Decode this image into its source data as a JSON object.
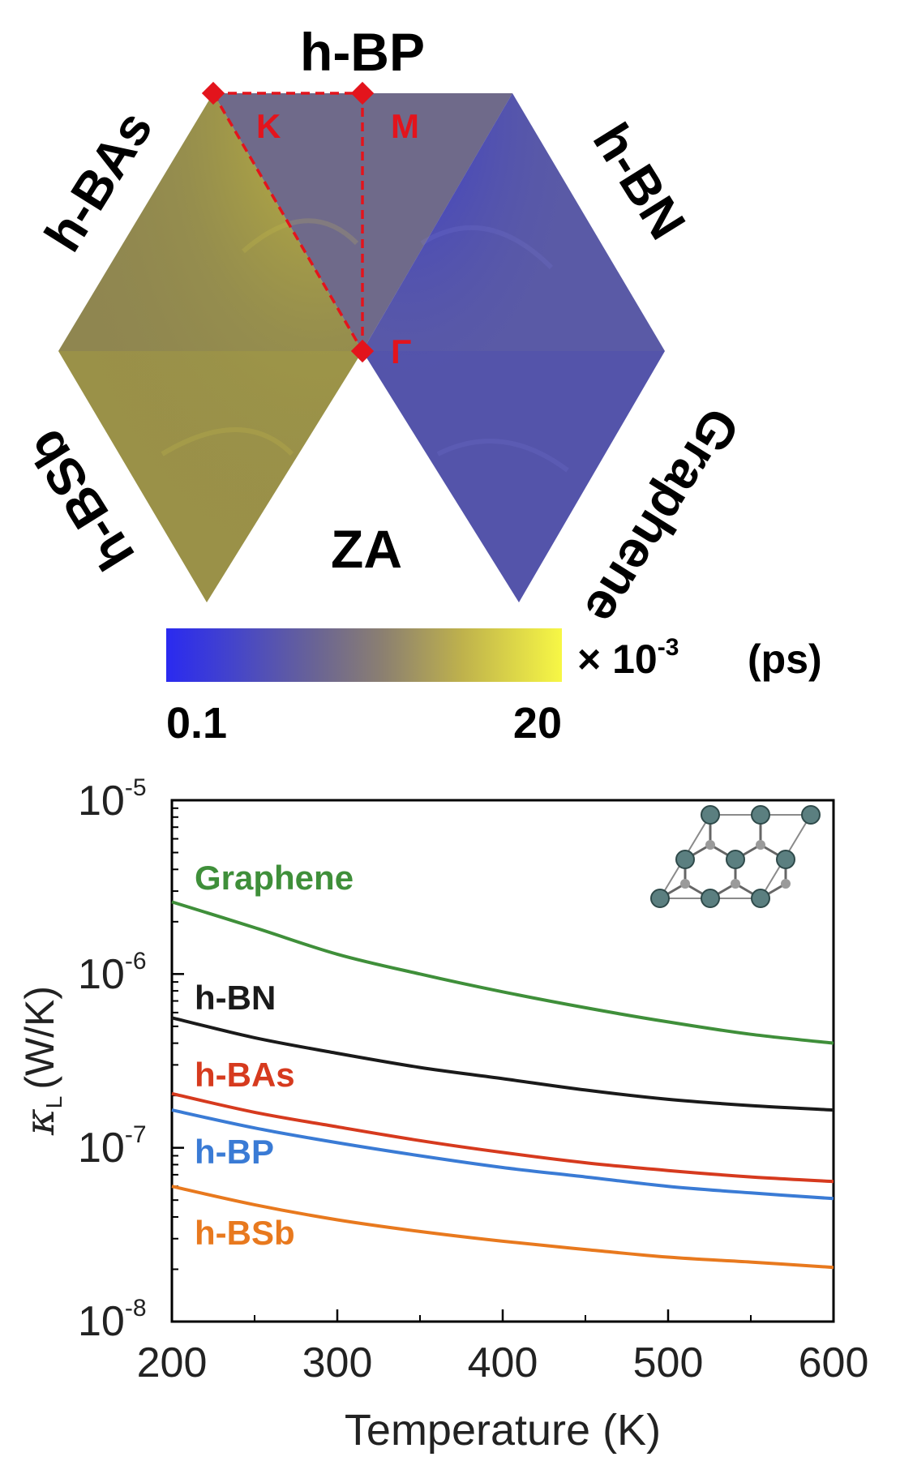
{
  "top_panel": {
    "materials": {
      "top": "h-BP",
      "upper_left": "h-BAs",
      "upper_right": "h-BN",
      "lower_left": "h-BSb",
      "lower_right": "Graphene"
    },
    "mode_label": "ZA",
    "points": {
      "K": "K",
      "M": "M",
      "Gamma": "Γ"
    },
    "colorbar": {
      "min_label": "0.1",
      "max_label": "20",
      "multiplier": "× 10",
      "exponent": "-3",
      "unit": "(ps)",
      "low_color": "#2a2af0",
      "high_color": "#f5f548"
    },
    "colors": {
      "yellowish_region": "#8f8650",
      "bluish_region": "#5a5aa6",
      "path_marker": "#e3141c"
    }
  },
  "chart_data": {
    "type": "line",
    "xlabel": "Temperature (K)",
    "ylabel": "κL (W/K)",
    "ylabel_symbol": "κ",
    "ylabel_subscript": "L",
    "ylabel_unit": "(W/K)",
    "xlim": [
      200,
      600
    ],
    "ylim": [
      1e-08,
      1e-05
    ],
    "yscale": "log",
    "x_ticks": [
      "200",
      "300",
      "400",
      "500",
      "600"
    ],
    "y_ticks": [
      {
        "base": "10",
        "exp": "-5"
      },
      {
        "base": "10",
        "exp": "-6"
      },
      {
        "base": "10",
        "exp": "-7"
      },
      {
        "base": "10",
        "exp": "-8"
      }
    ],
    "x": [
      200,
      250,
      300,
      350,
      400,
      450,
      500,
      550,
      600
    ],
    "series": [
      {
        "name": "Graphene",
        "color": "#3f8f3a",
        "values": [
          2.6e-06,
          1.85e-06,
          1.3e-06,
          1e-06,
          7.9e-07,
          6.4e-07,
          5.3e-07,
          4.5e-07,
          4e-07
        ]
      },
      {
        "name": "h-BN",
        "color": "#1a1a1a",
        "values": [
          5.6e-07,
          4.3e-07,
          3.5e-07,
          2.9e-07,
          2.5e-07,
          2.15e-07,
          1.9e-07,
          1.75e-07,
          1.65e-07
        ]
      },
      {
        "name": "h-BAs",
        "color": "#d63a1e",
        "values": [
          2.05e-07,
          1.6e-07,
          1.32e-07,
          1.1e-07,
          9.4e-08,
          8.2e-08,
          7.4e-08,
          6.8e-08,
          6.4e-08
        ]
      },
      {
        "name": "h-BP",
        "color": "#3a7bd5",
        "values": [
          1.65e-07,
          1.3e-07,
          1.07e-07,
          9e-08,
          7.7e-08,
          6.8e-08,
          6e-08,
          5.5e-08,
          5.1e-08
        ]
      },
      {
        "name": "h-BSb",
        "color": "#e8791e",
        "values": [
          6e-08,
          4.7e-08,
          3.85e-08,
          3.3e-08,
          2.9e-08,
          2.6e-08,
          2.35e-08,
          2.2e-08,
          2.05e-08
        ]
      }
    ],
    "grid": false,
    "legend": "inline labels"
  }
}
